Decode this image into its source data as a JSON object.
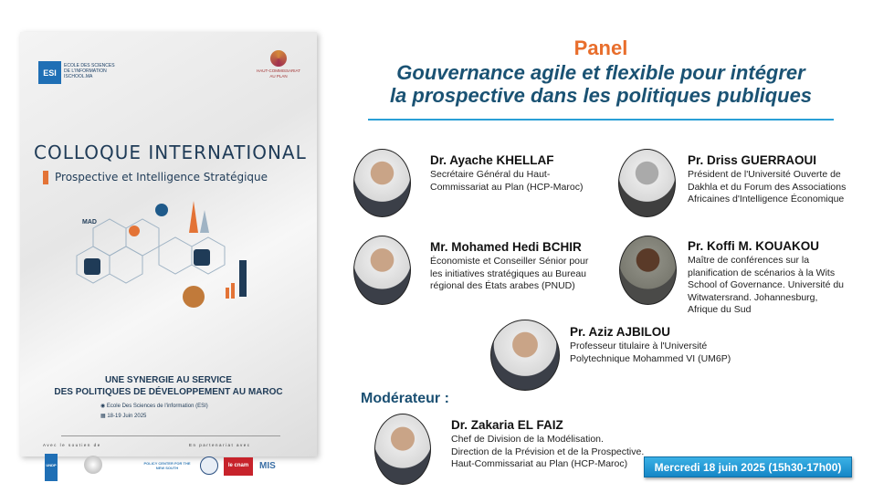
{
  "poster": {
    "esi_logo": "ESI",
    "esi_name": "ECOLE DES SCIENCES DE L'INFORMATION ISCHOOL.MA",
    "hcp_name": "HAUT-COMMISSARIAT AU PLAN",
    "title": "COLLOQUE INTERNATIONAL",
    "subtitle": "Prospective et Intelligence Stratégique",
    "illustration_label": "MAD",
    "synergy_line1": "UNE SYNERGIE AU SERVICE",
    "synergy_line2": "DES POLITIQUES DE DÉVELOPPEMENT AU MAROC",
    "location": "Ecole Des Sciences de l'information (ESI)",
    "dates": "18-19 Juin 2025",
    "support_label": "Avec le soutien de",
    "partner_label": "En partenariat avec",
    "support_logos": [
      "UNDP"
    ],
    "partner_logos": [
      "POLICY CENTER FOR THE NEW SOUTH",
      "le cnam",
      "MIS"
    ],
    "accent_color": "#e37336"
  },
  "panel": {
    "label": "Panel",
    "title_line1": "Gouvernance agile et flexible pour intégrer",
    "title_line2": "la prospective dans les politiques publiques"
  },
  "speakers": [
    {
      "name": "Dr. Ayache KHELLAF",
      "desc": [
        "Secrétaire Général du Haut-",
        "Commissariat au Plan (HCP-Maroc)"
      ]
    },
    {
      "name": "Pr. Driss GUERRAOUI",
      "desc": [
        "Président de l'Université Ouverte de",
        "Dakhla et du Forum des Associations",
        "Africaines d'Intelligence Économique"
      ]
    },
    {
      "name": "Mr. Mohamed Hedi BCHIR",
      "desc": [
        "Économiste et Conseiller Sénior pour",
        "les initiatives stratégiques au Bureau",
        "régional des États arabes (PNUD)"
      ]
    },
    {
      "name": "Pr. Koffi M. KOUAKOU",
      "desc": [
        "Maître de conférences sur la",
        "planification de scénarios à la Wits",
        "School of Governance. Université du",
        "Witwatersrand. Johannesburg,",
        "Afrique du Sud"
      ]
    },
    {
      "name": "Pr. Aziz AJBILOU",
      "desc": [
        "Professeur titulaire à l'Université",
        "Polytechnique Mohammed VI (UM6P)"
      ]
    }
  ],
  "moderator": {
    "label": "Modérateur :",
    "name": "Dr. Zakaria EL FAIZ",
    "desc": [
      "Chef de Division de la Modélisation.",
      "Direction de la Prévision et de la Prospective.",
      "Haut-Commissariat au Plan (HCP-Maroc)"
    ]
  },
  "date_badge": "Mercredi 18 juin 2025 (15h30-17h00)",
  "colors": {
    "title_orange": "#e86e2c",
    "title_blue": "#1a5273",
    "rule": "#2a9fd6",
    "badge": "#1f97d6"
  }
}
